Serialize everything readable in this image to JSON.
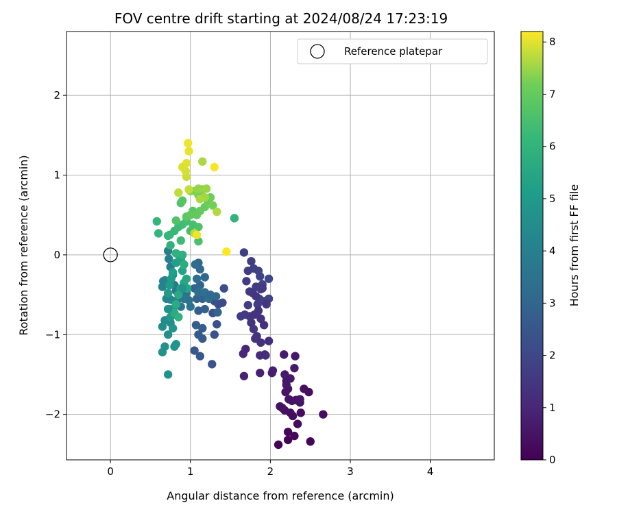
{
  "chart_data": {
    "type": "scatter",
    "title": "FOV centre drift starting at 2024/08/24 17:23:19",
    "xlabel": "Angular distance from reference (arcmin)",
    "ylabel": "Rotation from reference (arcmin)",
    "xlim": [
      -0.55,
      4.8
    ],
    "ylim": [
      -2.57,
      2.8
    ],
    "x_ticks": [
      0,
      1,
      2,
      3,
      4
    ],
    "x_tick_labels": [
      "0",
      "1",
      "2",
      "3",
      "4"
    ],
    "y_ticks": [
      -2,
      -1,
      0,
      1,
      2
    ],
    "y_tick_labels": [
      "−2",
      "−1",
      "0",
      "1",
      "2"
    ],
    "grid": true,
    "legend": {
      "position": "top-right",
      "label": "Reference platepar"
    },
    "reference_point": {
      "x": 0,
      "y": 0
    },
    "colorbar": {
      "label": "Hours from first FF file",
      "min": 0,
      "max": 8.2,
      "ticks": [
        0,
        1,
        2,
        3,
        4,
        5,
        6,
        7,
        8
      ],
      "tick_labels": [
        "0",
        "1",
        "2",
        "3",
        "4",
        "5",
        "6",
        "7",
        "8"
      ],
      "colormap": "viridis"
    },
    "points": [
      [
        2.1,
        -2.38,
        0.05
      ],
      [
        2.22,
        -2.32,
        0.1
      ],
      [
        2.22,
        -2.22,
        0.15
      ],
      [
        2.3,
        -2.27,
        0.2
      ],
      [
        2.5,
        -2.34,
        0.12
      ],
      [
        2.34,
        -2.12,
        0.25
      ],
      [
        2.38,
        -1.98,
        0.3
      ],
      [
        2.48,
        -1.72,
        0.35
      ],
      [
        2.66,
        -2.0,
        0.3
      ],
      [
        2.42,
        -1.68,
        0.4
      ],
      [
        2.27,
        -1.83,
        0.45
      ],
      [
        2.32,
        -1.82,
        0.5
      ],
      [
        2.37,
        -1.85,
        0.5
      ],
      [
        2.37,
        -1.81,
        0.55
      ],
      [
        2.31,
        -1.27,
        0.6
      ],
      [
        2.3,
        -1.42,
        0.65
      ],
      [
        2.23,
        -1.81,
        0.5
      ],
      [
        2.15,
        -1.92,
        0.45
      ],
      [
        2.12,
        -1.9,
        0.4
      ],
      [
        2.18,
        -1.95,
        0.42
      ],
      [
        2.25,
        -1.98,
        0.38
      ],
      [
        2.28,
        -2.02,
        0.32
      ],
      [
        2.22,
        -1.68,
        0.55
      ],
      [
        2.2,
        -1.58,
        0.6
      ],
      [
        2.18,
        -1.5,
        0.65
      ],
      [
        2.2,
        -1.63,
        0.58
      ],
      [
        2.19,
        -1.72,
        0.52
      ],
      [
        2.25,
        -1.55,
        0.62
      ],
      [
        2.17,
        -1.25,
        0.7
      ],
      [
        2.03,
        -1.45,
        0.75
      ],
      [
        2.02,
        -1.48,
        0.8
      ],
      [
        1.87,
        -1.48,
        0.85
      ],
      [
        1.67,
        -1.52,
        0.9
      ],
      [
        1.69,
        -1.18,
        1.0
      ],
      [
        1.66,
        -1.24,
        1.05
      ],
      [
        1.93,
        -1.25,
        1.1
      ],
      [
        1.87,
        -1.26,
        1.15
      ],
      [
        1.94,
        -1.26,
        1.2
      ],
      [
        1.98,
        -1.08,
        1.25
      ],
      [
        1.88,
        -1.1,
        1.3
      ],
      [
        1.83,
        -1.02,
        1.35
      ],
      [
        1.81,
        -1.05,
        1.4
      ],
      [
        1.79,
        -0.93,
        1.45
      ],
      [
        1.74,
        -0.77,
        1.5
      ],
      [
        1.68,
        -0.75,
        1.55
      ],
      [
        1.63,
        -0.77,
        1.6
      ],
      [
        1.72,
        -0.63,
        1.65
      ],
      [
        1.84,
        -0.62,
        1.7
      ],
      [
        1.86,
        -0.55,
        1.75
      ],
      [
        1.92,
        -0.58,
        1.8
      ],
      [
        1.98,
        -0.55,
        1.85
      ],
      [
        1.88,
        -0.43,
        1.9
      ],
      [
        1.9,
        -0.37,
        1.95
      ],
      [
        1.98,
        -0.3,
        2.0
      ],
      [
        1.87,
        -0.27,
        1.9
      ],
      [
        1.85,
        -0.2,
        1.85
      ],
      [
        1.79,
        -0.17,
        1.8
      ],
      [
        1.76,
        -0.08,
        1.75
      ],
      [
        1.67,
        0.03,
        1.7
      ],
      [
        1.72,
        -0.2,
        1.65
      ],
      [
        1.7,
        -0.33,
        1.6
      ],
      [
        1.74,
        -0.46,
        1.55
      ],
      [
        1.78,
        -0.48,
        1.5
      ],
      [
        1.82,
        -0.52,
        1.45
      ],
      [
        1.85,
        -0.7,
        1.4
      ],
      [
        1.88,
        -0.8,
        1.35
      ],
      [
        1.92,
        -0.88,
        1.3
      ],
      [
        1.8,
        -0.75,
        1.38
      ],
      [
        1.76,
        -0.85,
        1.42
      ],
      [
        1.9,
        -0.42,
        1.58
      ],
      [
        1.82,
        -0.4,
        1.62
      ],
      [
        1.95,
        -0.62,
        1.48
      ],
      [
        1.4,
        -0.6,
        2.1
      ],
      [
        1.35,
        -0.62,
        2.15
      ],
      [
        1.42,
        -0.42,
        2.2
      ],
      [
        1.3,
        -0.58,
        2.25
      ],
      [
        1.28,
        -0.73,
        2.3
      ],
      [
        1.33,
        -0.87,
        2.35
      ],
      [
        1.3,
        -1.0,
        2.4
      ],
      [
        1.27,
        -1.37,
        2.45
      ],
      [
        1.12,
        -1.27,
        2.5
      ],
      [
        1.05,
        -1.2,
        2.55
      ],
      [
        1.1,
        -1.0,
        2.6
      ],
      [
        1.15,
        -1.05,
        2.65
      ],
      [
        1.15,
        -0.92,
        2.7
      ],
      [
        1.07,
        -0.88,
        2.75
      ],
      [
        1.1,
        -0.7,
        2.8
      ],
      [
        1.18,
        -0.68,
        2.85
      ],
      [
        1.15,
        -0.55,
        2.9
      ],
      [
        1.08,
        -0.55,
        2.95
      ],
      [
        1.05,
        -0.42,
        3.0
      ],
      [
        1.12,
        -0.38,
        3.05
      ],
      [
        1.18,
        -0.28,
        3.1
      ],
      [
        1.12,
        -0.18,
        3.15
      ],
      [
        1.1,
        -0.1,
        3.2
      ],
      [
        1.06,
        -0.12,
        3.25
      ],
      [
        1.08,
        -0.3,
        3.3
      ],
      [
        1.1,
        -0.47,
        3.35
      ],
      [
        1.18,
        -0.47,
        3.4
      ],
      [
        1.23,
        -0.55,
        3.3
      ],
      [
        1.25,
        -0.5,
        3.2
      ],
      [
        1.32,
        -0.52,
        3.1
      ],
      [
        1.34,
        -0.72,
        3.0
      ],
      [
        1.0,
        -0.65,
        3.45
      ],
      [
        0.98,
        -0.57,
        3.5
      ],
      [
        0.95,
        -0.48,
        3.55
      ],
      [
        0.92,
        -0.55,
        3.6
      ],
      [
        0.88,
        -0.65,
        3.65
      ],
      [
        0.85,
        -0.55,
        3.7
      ],
      [
        0.82,
        -0.45,
        3.75
      ],
      [
        0.8,
        -0.38,
        3.8
      ],
      [
        0.78,
        -0.25,
        3.85
      ],
      [
        0.75,
        -0.15,
        3.9
      ],
      [
        0.73,
        -0.05,
        3.95
      ],
      [
        0.72,
        0.05,
        4.0
      ],
      [
        0.68,
        -0.32,
        4.05
      ],
      [
        0.66,
        -0.33,
        4.1
      ],
      [
        0.65,
        -0.4,
        4.15
      ],
      [
        0.7,
        -0.55,
        4.2
      ],
      [
        0.75,
        -0.56,
        4.25
      ],
      [
        0.8,
        -0.58,
        4.3
      ],
      [
        0.78,
        -0.68,
        4.35
      ],
      [
        0.75,
        -0.85,
        4.4
      ],
      [
        0.68,
        -0.82,
        4.45
      ],
      [
        0.65,
        -0.9,
        4.5
      ],
      [
        0.72,
        -1.0,
        4.55
      ],
      [
        0.68,
        -1.15,
        4.6
      ],
      [
        0.65,
        -1.22,
        4.65
      ],
      [
        0.72,
        -1.5,
        4.7
      ],
      [
        0.8,
        -1.15,
        4.75
      ],
      [
        0.82,
        -1.12,
        4.8
      ],
      [
        0.78,
        -0.92,
        4.85
      ],
      [
        0.75,
        -0.78,
        4.9
      ],
      [
        0.74,
        -0.68,
        4.95
      ],
      [
        0.72,
        -0.48,
        5.0
      ],
      [
        0.74,
        -0.38,
        5.05
      ],
      [
        0.76,
        -0.3,
        5.1
      ],
      [
        0.78,
        -0.22,
        5.15
      ],
      [
        0.82,
        -0.1,
        5.2
      ],
      [
        0.85,
        0.0,
        5.25
      ],
      [
        0.88,
        -0.05,
        5.3
      ],
      [
        0.9,
        -0.2,
        5.35
      ],
      [
        0.92,
        -0.35,
        5.4
      ],
      [
        0.95,
        -0.3,
        5.45
      ],
      [
        0.96,
        -0.42,
        5.5
      ],
      [
        0.88,
        -0.42,
        5.55
      ],
      [
        0.85,
        -0.5,
        5.6
      ],
      [
        0.82,
        -0.62,
        5.65
      ],
      [
        0.8,
        -0.73,
        5.7
      ],
      [
        0.85,
        -0.78,
        5.75
      ],
      [
        0.92,
        -0.12,
        5.8
      ],
      [
        0.9,
        0.0,
        5.85
      ],
      [
        0.82,
        0.02,
        5.9
      ],
      [
        0.75,
        0.12,
        5.95
      ],
      [
        0.72,
        0.24,
        6.0
      ],
      [
        0.6,
        0.27,
        6.05
      ],
      [
        0.58,
        0.42,
        6.1
      ],
      [
        0.74,
        0.25,
        6.15
      ],
      [
        0.8,
        0.3,
        6.2
      ],
      [
        0.85,
        0.35,
        6.25
      ],
      [
        0.88,
        0.18,
        6.3
      ],
      [
        0.9,
        0.38,
        6.35
      ],
      [
        0.95,
        0.42,
        6.4
      ],
      [
        1.0,
        0.3,
        6.45
      ],
      [
        1.03,
        0.38,
        6.5
      ],
      [
        1.1,
        0.17,
        6.55
      ],
      [
        1.1,
        0.35,
        6.6
      ],
      [
        0.82,
        0.43,
        6.65
      ],
      [
        0.88,
        0.65,
        6.7
      ],
      [
        0.9,
        0.68,
        6.75
      ],
      [
        1.55,
        0.46,
        6.0
      ],
      [
        1.03,
        0.55,
        6.8
      ],
      [
        0.95,
        0.48,
        6.85
      ],
      [
        1.0,
        0.5,
        6.9
      ],
      [
        1.08,
        0.5,
        6.95
      ],
      [
        1.12,
        0.55,
        7.0
      ],
      [
        1.18,
        0.6,
        7.05
      ],
      [
        1.22,
        0.65,
        7.1
      ],
      [
        1.25,
        0.72,
        7.15
      ],
      [
        1.28,
        0.62,
        7.2
      ],
      [
        1.1,
        0.75,
        7.25
      ],
      [
        1.05,
        0.8,
        7.3
      ],
      [
        1.0,
        0.8,
        7.35
      ],
      [
        1.15,
        0.82,
        7.4
      ],
      [
        1.1,
        0.83,
        7.45
      ],
      [
        1.2,
        0.83,
        7.5
      ],
      [
        1.18,
        0.72,
        7.55
      ],
      [
        1.12,
        0.7,
        7.6
      ],
      [
        1.33,
        0.54,
        7.65
      ],
      [
        1.05,
        0.27,
        7.7
      ],
      [
        0.85,
        0.78,
        7.75
      ],
      [
        0.98,
        0.82,
        7.8
      ],
      [
        0.95,
        0.98,
        7.85
      ],
      [
        0.94,
        1.05,
        7.9
      ],
      [
        0.9,
        1.1,
        7.95
      ],
      [
        0.95,
        1.15,
        8.0
      ],
      [
        0.98,
        1.3,
        8.05
      ],
      [
        0.97,
        1.4,
        8.1
      ],
      [
        1.3,
        1.1,
        8.15
      ],
      [
        1.15,
        1.17,
        7.6
      ],
      [
        1.45,
        0.04,
        8.2
      ],
      [
        1.08,
        0.25,
        8.1
      ],
      [
        0.85,
        -0.78,
        5.9
      ],
      [
        0.72,
        -0.68,
        4.6
      ],
      [
        0.9,
        -0.42,
        4.8
      ]
    ]
  }
}
